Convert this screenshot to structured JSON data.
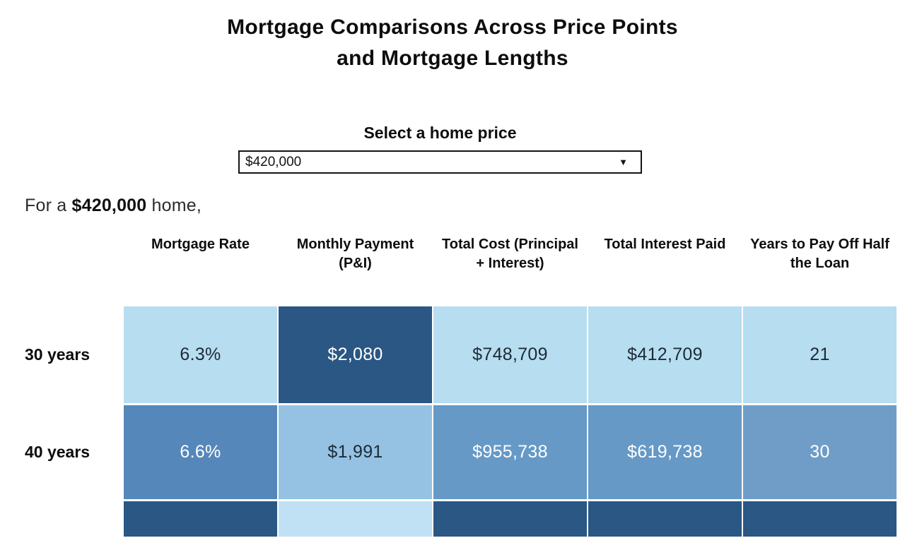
{
  "title": {
    "line1": "Mortgage Comparisons Across Price Points",
    "line2": "and Mortgage Lengths"
  },
  "price_select": {
    "label": "Select a home price",
    "value": "$420,000",
    "dropdown_icon": "▼"
  },
  "subtitle": {
    "prefix": "For a",
    "price": "$420,000",
    "suffix": "home,"
  },
  "chart_data": {
    "type": "heatmap",
    "title": "Mortgage Comparisons Across Price Points and Mortgage Lengths",
    "selected_home_price": "$420,000",
    "columns": [
      "Mortgage Rate",
      "Monthly Payment (P&I)",
      "Total Cost (Principal + Interest)",
      "Total Interest Paid",
      "Years to Pay Off Half the Loan"
    ],
    "rows": [
      {
        "label": "30 years",
        "partial": false,
        "cells": [
          {
            "value": "6.3%",
            "bg": "#b7ddf0",
            "fg": "#1c2b36"
          },
          {
            "value": "$2,080",
            "bg": "#2a5784",
            "fg": "#ffffff"
          },
          {
            "value": "$748,709",
            "bg": "#b7ddf0",
            "fg": "#1c2b36"
          },
          {
            "value": "$412,709",
            "bg": "#b7ddf0",
            "fg": "#1c2b36"
          },
          {
            "value": "21",
            "bg": "#b7ddf0",
            "fg": "#1c2b36"
          }
        ]
      },
      {
        "label": "40 years",
        "partial": false,
        "cells": [
          {
            "value": "6.6%",
            "bg": "#5587ba",
            "fg": "#ffffff"
          },
          {
            "value": "$1,991",
            "bg": "#95c2e3",
            "fg": "#1c2b36"
          },
          {
            "value": "$955,738",
            "bg": "#6699c6",
            "fg": "#ffffff"
          },
          {
            "value": "$619,738",
            "bg": "#6699c6",
            "fg": "#ffffff"
          },
          {
            "value": "30",
            "bg": "#6f9dc7",
            "fg": "#ffffff"
          }
        ]
      },
      {
        "label": "",
        "partial": true,
        "cells": [
          {
            "value": "",
            "bg": "#2a5784",
            "fg": "#ffffff"
          },
          {
            "value": "",
            "bg": "#bfe1f3",
            "fg": "#1c2b36"
          },
          {
            "value": "",
            "bg": "#2a5784",
            "fg": "#ffffff"
          },
          {
            "value": "",
            "bg": "#2a5784",
            "fg": "#ffffff"
          },
          {
            "value": "",
            "bg": "#2a5784",
            "fg": "#ffffff"
          }
        ]
      }
    ]
  }
}
